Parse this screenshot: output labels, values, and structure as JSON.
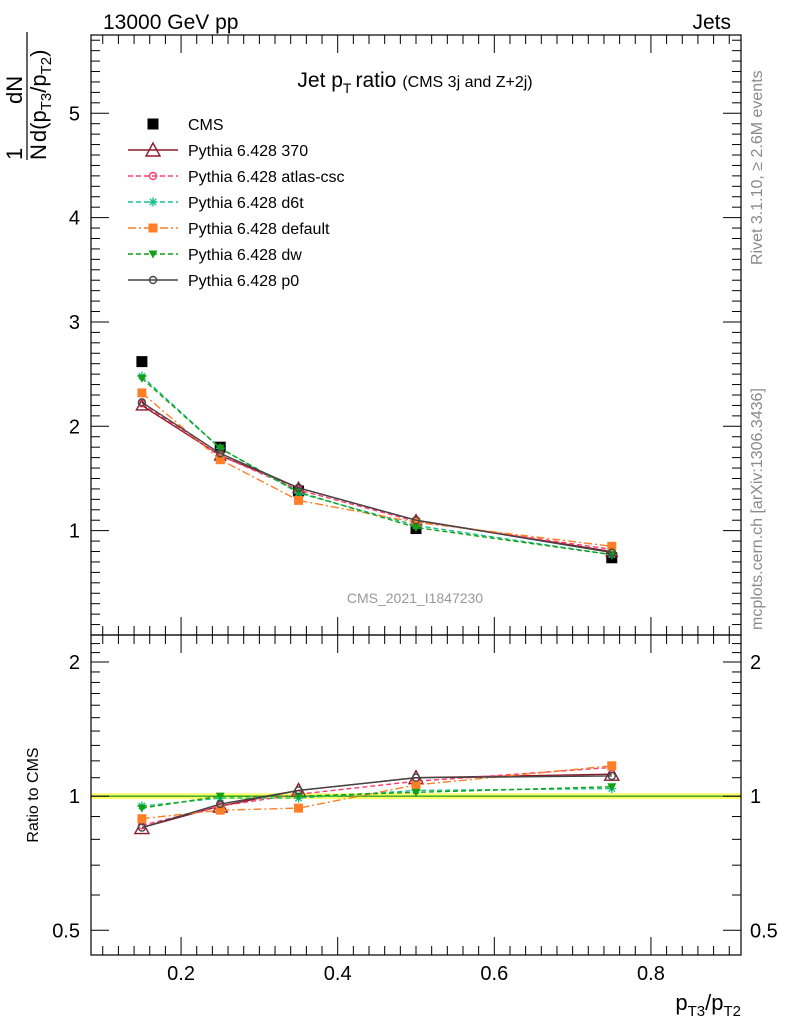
{
  "header": {
    "left": "13000 GeV pp",
    "right": "Jets"
  },
  "side_labels": {
    "rivet": "Rivet 3.1.10, ≥ 2.6M events",
    "mcplots": "mcplots.cern.ch [arXiv:1306.3436]"
  },
  "watermark": "CMS_2021_I1847230",
  "chart_data": [
    {
      "type": "scatter",
      "panel": "main",
      "title": "Jet p_T ratio (CMS 3j and Z+2j)",
      "title_main": "Jet p",
      "title_sub": "T",
      "title_ratio": "ratio",
      "title_small": "(CMS 3j and Z+2j)",
      "ylabel_parts": {
        "num_one": "1",
        "num_den": "N",
        "dN": "dN",
        "d": "d(p",
        "t3": "T3",
        "slash": "/p",
        "t2": "T2",
        "close": ")"
      },
      "xlim": [
        0.085,
        0.915
      ],
      "ylim": [
        0,
        5.75
      ],
      "yticks": [
        1,
        2,
        3,
        4,
        5
      ],
      "ytick_labels": [
        "1",
        "2",
        "3",
        "4",
        "5"
      ],
      "x": [
        0.15,
        0.25,
        0.35,
        0.5,
        0.75
      ],
      "series": [
        {
          "name": "CMS",
          "color": "#000000",
          "marker": "square",
          "dash": "none",
          "values": [
            2.62,
            1.8,
            1.38,
            1.02,
            0.74
          ]
        },
        {
          "name": "Pythia 6.428 370",
          "color": "#8b1a2a",
          "marker": "triangle-open",
          "dash": "solid",
          "values": [
            2.2,
            1.72,
            1.41,
            1.1,
            0.8
          ]
        },
        {
          "name": "Pythia 6.428 atlas-csc",
          "color": "#ff3b6b",
          "marker": "circle-open",
          "dash": "dashed",
          "values": [
            2.22,
            1.72,
            1.39,
            1.09,
            0.82
          ]
        },
        {
          "name": "Pythia 6.428 d6t",
          "color": "#1fbf8f",
          "marker": "star",
          "dash": "dashed",
          "values": [
            2.48,
            1.79,
            1.36,
            1.05,
            0.77
          ]
        },
        {
          "name": "Pythia 6.428 default",
          "color": "#ff7f27",
          "marker": "square",
          "dash": "dashdot",
          "values": [
            2.32,
            1.68,
            1.29,
            1.08,
            0.85
          ]
        },
        {
          "name": "Pythia 6.428 dw",
          "color": "#14a014",
          "marker": "triangle-down",
          "dash": "dashed",
          "values": [
            2.46,
            1.79,
            1.37,
            1.03,
            0.77
          ]
        },
        {
          "name": "Pythia 6.428 p0",
          "color": "#444444",
          "marker": "circle-open",
          "dash": "solid",
          "values": [
            2.23,
            1.74,
            1.41,
            1.1,
            0.79
          ]
        }
      ]
    },
    {
      "type": "scatter",
      "panel": "ratio",
      "ylabel": "Ratio to CMS",
      "xlabel_parts": {
        "p1": "p",
        "s1": "T3",
        "slash": "/p",
        "s2": "T2"
      },
      "xlim": [
        0.085,
        0.915
      ],
      "ylim": [
        0.44,
        2.3
      ],
      "yscale": "log",
      "yticks": [
        0.5,
        1,
        2
      ],
      "ytick_labels": [
        "0.5",
        "1",
        "2"
      ],
      "xticks": [
        0.2,
        0.4,
        0.6,
        0.8
      ],
      "xtick_labels": [
        "0.2",
        "0.4",
        "0.6",
        "0.8"
      ],
      "x": [
        0.15,
        0.25,
        0.35,
        0.5,
        0.75
      ],
      "reference_band": {
        "color": "#ffff66",
        "line_color": "#2ca02c",
        "lo": 0.985,
        "hi": 1.015
      },
      "series": [
        {
          "name": "Pythia 6.428 370",
          "values": [
            0.85,
            0.95,
            1.03,
            1.1,
            1.12
          ]
        },
        {
          "name": "Pythia 6.428 atlas-csc",
          "values": [
            0.86,
            0.95,
            1.01,
            1.08,
            1.16
          ]
        },
        {
          "name": "Pythia 6.428 d6t",
          "values": [
            0.95,
            0.99,
            0.99,
            1.03,
            1.04
          ]
        },
        {
          "name": "Pythia 6.428 default",
          "values": [
            0.89,
            0.93,
            0.94,
            1.06,
            1.17
          ]
        },
        {
          "name": "Pythia 6.428 dw",
          "values": [
            0.94,
            1.0,
            1.0,
            1.02,
            1.05
          ]
        },
        {
          "name": "Pythia 6.428 p0",
          "values": [
            0.85,
            0.96,
            1.03,
            1.1,
            1.11
          ]
        }
      ]
    }
  ]
}
